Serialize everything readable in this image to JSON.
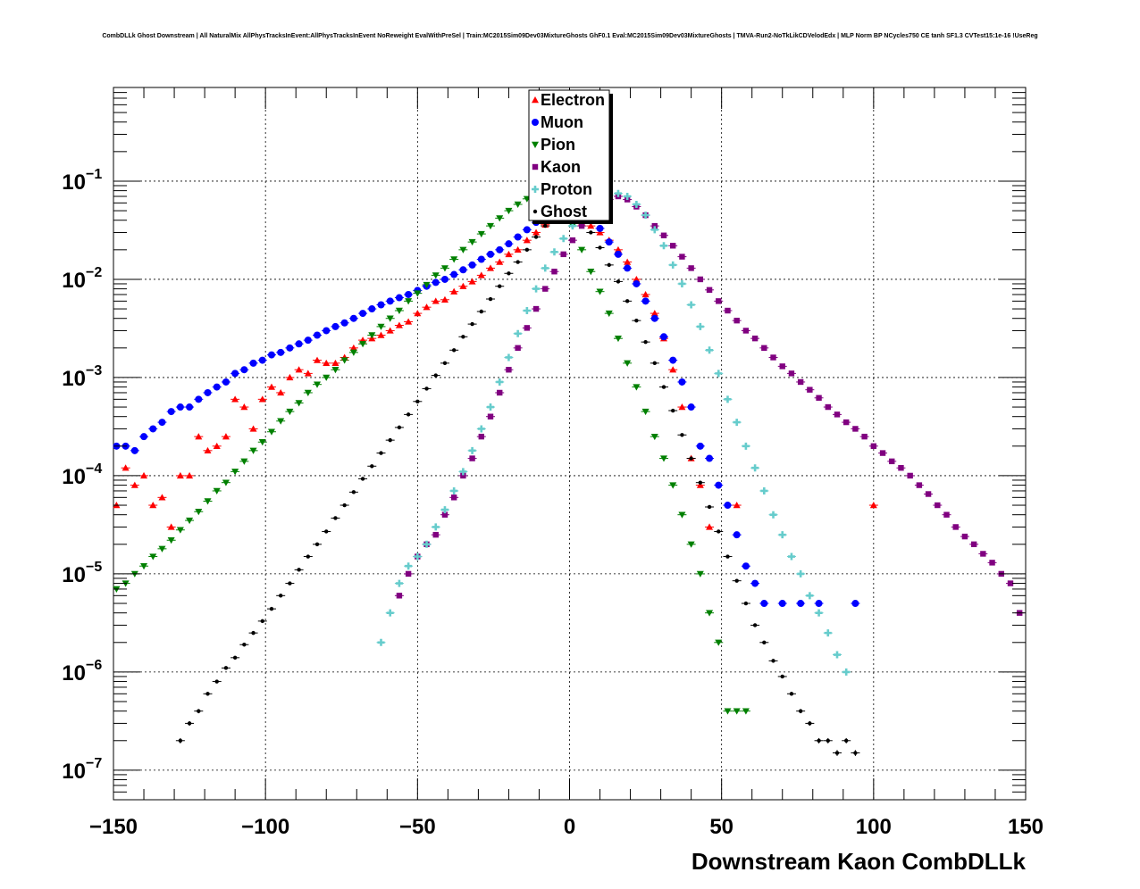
{
  "chart_data": {
    "type": "scatter",
    "title": "CombDLLk Ghost Downstream | All NaturalMix AllPhysTracksInEvent:AllPhysTracksInEvent NoReweight EvalWithPreSel | Train:MC2015Sim09Dev03MixtureGhosts GhF0.1 Eval:MC2015Sim09Dev03MixtureGhosts | TMVA-Run2-NoTkLikCDVelodEdx | MLP Norm BP NCycles750 CE tanh SF1.3 CVTest15:1e-16 !UseReg",
    "xlabel": "Downstream Kaon CombDLLk",
    "ylabel": "",
    "xlim": [
      -150,
      150
    ],
    "ylim": [
      5e-08,
      0.9
    ],
    "yscale": "log",
    "grid": true,
    "legend_position": "top-center",
    "x_ticks": [
      "−150",
      "−100",
      "−50",
      "0",
      "50",
      "100",
      "150"
    ],
    "y_ticks": [
      {
        "base": "10",
        "exp": "−7"
      },
      {
        "base": "10",
        "exp": "−6"
      },
      {
        "base": "10",
        "exp": "−5"
      },
      {
        "base": "10",
        "exp": "−4"
      },
      {
        "base": "10",
        "exp": "−3"
      },
      {
        "base": "10",
        "exp": "−2"
      },
      {
        "base": "10",
        "exp": "−1"
      }
    ],
    "series": [
      {
        "name": "Electron",
        "color": "#ff0000",
        "marker": "triangle-up",
        "x": [
          -149,
          -146,
          -143,
          -140,
          -137,
          -134,
          -131,
          -128,
          -125,
          -122,
          -119,
          -116,
          -113,
          -110,
          -107,
          -104,
          -101,
          -98,
          -95,
          -92,
          -89,
          -86,
          -83,
          -80,
          -77,
          -74,
          -71,
          -68,
          -65,
          -62,
          -59,
          -56,
          -53,
          -50,
          -47,
          -44,
          -41,
          -38,
          -35,
          -32,
          -29,
          -26,
          -23,
          -20,
          -17,
          -14,
          -11,
          -8,
          -5,
          -2,
          1,
          4,
          7,
          10,
          13,
          16,
          19,
          22,
          25,
          28,
          31,
          34,
          37,
          40,
          43,
          46,
          55,
          100
        ],
        "y": [
          5e-05,
          0.00012,
          8e-05,
          0.0001,
          5e-05,
          6e-05,
          3e-05,
          0.0001,
          0.0001,
          0.00025,
          0.00018,
          0.0002,
          0.00025,
          0.0006,
          0.0005,
          0.0003,
          0.0006,
          0.0008,
          0.0007,
          0.001,
          0.0012,
          0.0011,
          0.0015,
          0.0014,
          0.0014,
          0.0016,
          0.002,
          0.0024,
          0.0025,
          0.0027,
          0.003,
          0.0034,
          0.0037,
          0.0045,
          0.0052,
          0.006,
          0.0062,
          0.0075,
          0.0085,
          0.0095,
          0.011,
          0.013,
          0.015,
          0.018,
          0.02,
          0.025,
          0.03,
          0.036,
          0.04,
          0.042,
          0.04,
          0.038,
          0.035,
          0.03,
          0.025,
          0.02,
          0.015,
          0.01,
          0.007,
          0.0045,
          0.0025,
          0.0012,
          0.0005,
          0.00015,
          8e-05,
          3e-05,
          5e-05,
          5e-05
        ]
      },
      {
        "name": "Muon",
        "color": "#0000ff",
        "marker": "circle",
        "x": [
          -149,
          -146,
          -143,
          -140,
          -137,
          -134,
          -131,
          -128,
          -125,
          -122,
          -119,
          -116,
          -113,
          -110,
          -107,
          -104,
          -101,
          -98,
          -95,
          -92,
          -89,
          -86,
          -83,
          -80,
          -77,
          -74,
          -71,
          -68,
          -65,
          -62,
          -59,
          -56,
          -53,
          -50,
          -47,
          -44,
          -41,
          -38,
          -35,
          -32,
          -29,
          -26,
          -23,
          -20,
          -17,
          -14,
          -11,
          -8,
          -5,
          -2,
          1,
          4,
          7,
          10,
          13,
          16,
          19,
          22,
          25,
          28,
          31,
          34,
          37,
          40,
          43,
          46,
          49,
          52,
          55,
          58,
          61,
          64,
          70,
          76,
          82,
          94
        ],
        "y": [
          0.0002,
          0.0002,
          0.00018,
          0.00025,
          0.0003,
          0.00035,
          0.00045,
          0.0005,
          0.0005,
          0.0006,
          0.0007,
          0.0008,
          0.0009,
          0.0011,
          0.0012,
          0.0014,
          0.0015,
          0.0017,
          0.0018,
          0.002,
          0.0022,
          0.0024,
          0.0027,
          0.003,
          0.0033,
          0.0036,
          0.004,
          0.0045,
          0.005,
          0.0055,
          0.006,
          0.0065,
          0.007,
          0.0077,
          0.0085,
          0.0093,
          0.01,
          0.0112,
          0.0125,
          0.014,
          0.016,
          0.018,
          0.02,
          0.023,
          0.027,
          0.032,
          0.038,
          0.045,
          0.052,
          0.058,
          0.06,
          0.055,
          0.045,
          0.033,
          0.024,
          0.018,
          0.013,
          0.009,
          0.006,
          0.004,
          0.0026,
          0.0015,
          0.0009,
          0.0005,
          0.0002,
          0.00015,
          8e-05,
          5e-05,
          2.5e-05,
          1.2e-05,
          8e-06,
          5e-06,
          5e-06,
          5e-06,
          5e-06,
          5e-06
        ]
      },
      {
        "name": "Pion",
        "color": "#008000",
        "marker": "triangle-down",
        "x": [
          -149,
          -146,
          -143,
          -140,
          -137,
          -134,
          -131,
          -128,
          -125,
          -122,
          -119,
          -116,
          -113,
          -110,
          -107,
          -104,
          -101,
          -98,
          -95,
          -92,
          -89,
          -86,
          -83,
          -80,
          -77,
          -74,
          -71,
          -68,
          -65,
          -62,
          -59,
          -56,
          -53,
          -50,
          -47,
          -44,
          -41,
          -38,
          -35,
          -32,
          -29,
          -26,
          -23,
          -20,
          -17,
          -14,
          -11,
          -8,
          -5,
          -2,
          1,
          4,
          7,
          10,
          13,
          16,
          19,
          22,
          25,
          28,
          31,
          34,
          37,
          40,
          43,
          46,
          49,
          52,
          55,
          58
        ],
        "y": [
          7e-06,
          8e-06,
          1e-05,
          1.2e-05,
          1.5e-05,
          1.8e-05,
          2.2e-05,
          2.8e-05,
          3.5e-05,
          4.3e-05,
          5.5e-05,
          7e-05,
          8.5e-05,
          0.00011,
          0.00014,
          0.00018,
          0.00022,
          0.00028,
          0.00036,
          0.00045,
          0.00055,
          0.0007,
          0.00085,
          0.001,
          0.0012,
          0.0015,
          0.0018,
          0.0022,
          0.0027,
          0.0033,
          0.004,
          0.0048,
          0.006,
          0.0072,
          0.0088,
          0.011,
          0.013,
          0.016,
          0.02,
          0.024,
          0.029,
          0.035,
          0.042,
          0.05,
          0.058,
          0.066,
          0.072,
          0.075,
          0.07,
          0.055,
          0.035,
          0.02,
          0.012,
          0.0075,
          0.0045,
          0.0025,
          0.0014,
          0.0008,
          0.00045,
          0.00025,
          0.00015,
          8e-05,
          4e-05,
          2e-05,
          1e-05,
          4e-06,
          2e-06,
          4e-07,
          4e-07,
          4e-07
        ]
      },
      {
        "name": "Kaon",
        "color": "#800080",
        "marker": "square",
        "x": [
          -56,
          -53,
          -50,
          -47,
          -44,
          -41,
          -38,
          -35,
          -32,
          -29,
          -26,
          -23,
          -20,
          -17,
          -14,
          -11,
          -8,
          -5,
          -2,
          1,
          4,
          7,
          10,
          13,
          16,
          19,
          22,
          25,
          28,
          31,
          34,
          37,
          40,
          43,
          46,
          49,
          52,
          55,
          58,
          61,
          64,
          67,
          70,
          73,
          76,
          79,
          82,
          85,
          88,
          91,
          94,
          97,
          100,
          103,
          106,
          109,
          112,
          115,
          118,
          121,
          124,
          127,
          130,
          133,
          136,
          139,
          142,
          145,
          148
        ],
        "y": [
          6e-06,
          1e-05,
          1.5e-05,
          2e-05,
          2.5e-05,
          4e-05,
          6e-05,
          0.0001,
          0.00015,
          0.00025,
          0.0004,
          0.0007,
          0.0012,
          0.002,
          0.0032,
          0.005,
          0.008,
          0.012,
          0.018,
          0.025,
          0.035,
          0.045,
          0.055,
          0.065,
          0.07,
          0.065,
          0.055,
          0.045,
          0.035,
          0.028,
          0.022,
          0.017,
          0.013,
          0.01,
          0.0078,
          0.006,
          0.0048,
          0.0038,
          0.003,
          0.0025,
          0.002,
          0.0016,
          0.0013,
          0.0011,
          0.0009,
          0.00075,
          0.00062,
          0.0005,
          0.00042,
          0.00035,
          0.0003,
          0.00025,
          0.0002,
          0.00017,
          0.00014,
          0.00012,
          0.0001,
          8e-05,
          6.5e-05,
          5e-05,
          4e-05,
          3e-05,
          2.4e-05,
          2e-05,
          1.6e-05,
          1.3e-05,
          1e-05,
          8e-06,
          4e-06
        ]
      },
      {
        "name": "Proton",
        "color": "#66cccc",
        "marker": "cross",
        "x": [
          -62,
          -59,
          -56,
          -53,
          -50,
          -47,
          -44,
          -41,
          -38,
          -35,
          -32,
          -29,
          -26,
          -23,
          -20,
          -17,
          -14,
          -11,
          -8,
          -5,
          -2,
          1,
          4,
          7,
          10,
          13,
          16,
          19,
          22,
          25,
          28,
          31,
          34,
          37,
          40,
          43,
          46,
          49,
          52,
          55,
          58,
          61,
          64,
          67,
          70,
          73,
          76,
          79,
          82,
          85,
          88,
          91
        ],
        "y": [
          2e-06,
          4e-06,
          8e-06,
          1.2e-05,
          1.5e-05,
          2e-05,
          3e-05,
          4.5e-05,
          7e-05,
          0.00011,
          0.00018,
          0.0003,
          0.0005,
          0.0009,
          0.0016,
          0.0028,
          0.0048,
          0.008,
          0.013,
          0.019,
          0.026,
          0.035,
          0.045,
          0.055,
          0.065,
          0.072,
          0.075,
          0.07,
          0.058,
          0.045,
          0.032,
          0.022,
          0.014,
          0.009,
          0.0055,
          0.0033,
          0.0019,
          0.0011,
          0.0006,
          0.00035,
          0.0002,
          0.00012,
          7e-05,
          4e-05,
          2.5e-05,
          1.5e-05,
          1e-05,
          6e-06,
          4e-06,
          2.5e-06,
          1.5e-06,
          1e-06
        ]
      },
      {
        "name": "Ghost",
        "color": "#000000",
        "marker": "dot",
        "x": [
          -128,
          -125,
          -122,
          -119,
          -116,
          -113,
          -110,
          -107,
          -104,
          -101,
          -98,
          -95,
          -92,
          -89,
          -86,
          -83,
          -80,
          -77,
          -74,
          -71,
          -68,
          -65,
          -62,
          -59,
          -56,
          -53,
          -50,
          -47,
          -44,
          -41,
          -38,
          -35,
          -32,
          -29,
          -26,
          -23,
          -20,
          -17,
          -14,
          -11,
          -8,
          -5,
          -2,
          1,
          4,
          7,
          10,
          13,
          16,
          19,
          22,
          25,
          28,
          31,
          34,
          37,
          40,
          43,
          46,
          49,
          52,
          55,
          58,
          61,
          64,
          67,
          70,
          73,
          76,
          79,
          82,
          85,
          88,
          91,
          94
        ],
        "y": [
          2e-07,
          3e-07,
          4e-07,
          6e-07,
          8e-07,
          1.1e-06,
          1.4e-06,
          1.9e-06,
          2.5e-06,
          3.3e-06,
          4.4e-06,
          6e-06,
          8e-06,
          1.1e-05,
          1.5e-05,
          2e-05,
          2.7e-05,
          3.7e-05,
          5e-05,
          6.8e-05,
          9.3e-05,
          0.000125,
          0.00017,
          0.00023,
          0.00031,
          0.00042,
          0.00057,
          0.00077,
          0.00105,
          0.0014,
          0.0019,
          0.0026,
          0.0035,
          0.0047,
          0.0063,
          0.0085,
          0.0115,
          0.015,
          0.02,
          0.027,
          0.035,
          0.044,
          0.05,
          0.048,
          0.04,
          0.03,
          0.021,
          0.014,
          0.0095,
          0.006,
          0.0038,
          0.0023,
          0.0014,
          0.0008,
          0.00046,
          0.00026,
          0.00015,
          8.5e-05,
          4.8e-05,
          2.7e-05,
          1.5e-05,
          8.5e-06,
          5e-06,
          3e-06,
          2e-06,
          1.3e-06,
          9e-07,
          6e-07,
          4e-07,
          3e-07,
          2e-07,
          2e-07,
          1.5e-07,
          2e-07,
          1.5e-07
        ]
      }
    ]
  }
}
